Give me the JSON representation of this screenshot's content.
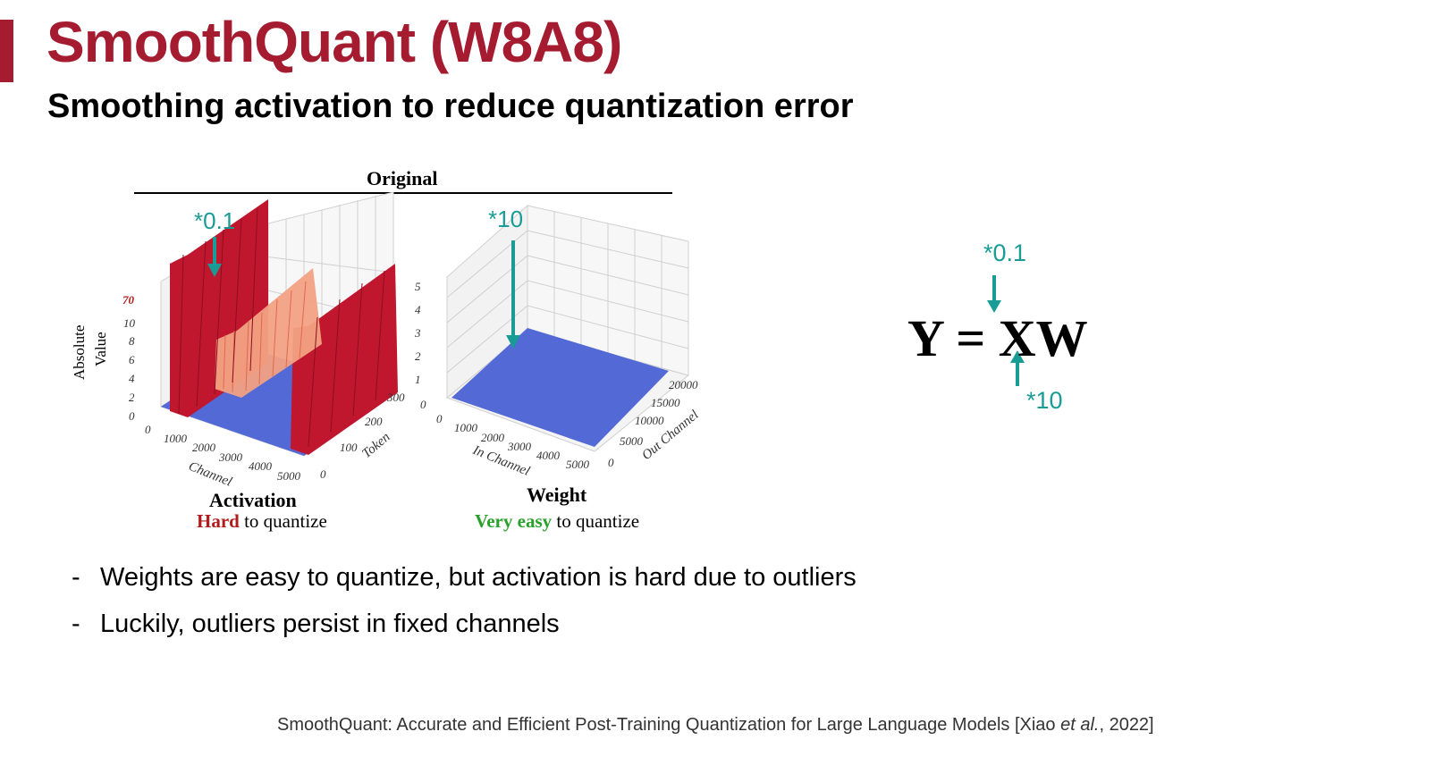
{
  "slide": {
    "title": "SmoothQuant (W8A8)",
    "subtitle": "Smoothing activation to reduce quantization error"
  },
  "figure": {
    "heading": "Original",
    "activation": {
      "label": "Activation",
      "caption_strong": "Hard",
      "caption_rest": " to quantize",
      "scale": "*0.1",
      "z_axis_label_1": "Absolute",
      "z_axis_label_2": "Value",
      "z_ticks": [
        "0",
        "2",
        "4",
        "6",
        "8",
        "10"
      ],
      "z_outlier_tick": "70",
      "x_axis_label": "Channel",
      "x_ticks": [
        "0",
        "1000",
        "2000",
        "3000",
        "4000",
        "5000"
      ],
      "y_axis_label": "Token",
      "y_ticks": [
        "0",
        "100",
        "200",
        "300"
      ]
    },
    "weight": {
      "label": "Weight",
      "caption_strong": "Very easy",
      "caption_rest": " to quantize",
      "scale": "*10",
      "z_ticks": [
        "0",
        "1",
        "2",
        "3",
        "4",
        "5"
      ],
      "x_axis_label": "In Channel",
      "x_ticks": [
        "0",
        "1000",
        "2000",
        "3000",
        "4000",
        "5000"
      ],
      "y_axis_label": "Out Channel",
      "y_ticks": [
        "0",
        "5000",
        "10000",
        "15000",
        "20000"
      ]
    },
    "colors": {
      "outlier": "#c0172f",
      "mid": "#f2a183",
      "base": "#5369d6"
    }
  },
  "equation": {
    "text": "Y = XW",
    "scale_up": "*0.1",
    "scale_down": "*10"
  },
  "bullets": [
    {
      "dash": "-",
      "text": "Weights are easy to quantize, but activation is hard due to outliers"
    },
    {
      "dash": "-",
      "text": "Luckily, outliers persist in fixed channels"
    }
  ],
  "footer": {
    "before": "SmoothQuant: Accurate and Efficient Post-Training Quantization for Large Language Models [Xiao ",
    "italic": "et al.",
    "after": ", 2022]"
  }
}
